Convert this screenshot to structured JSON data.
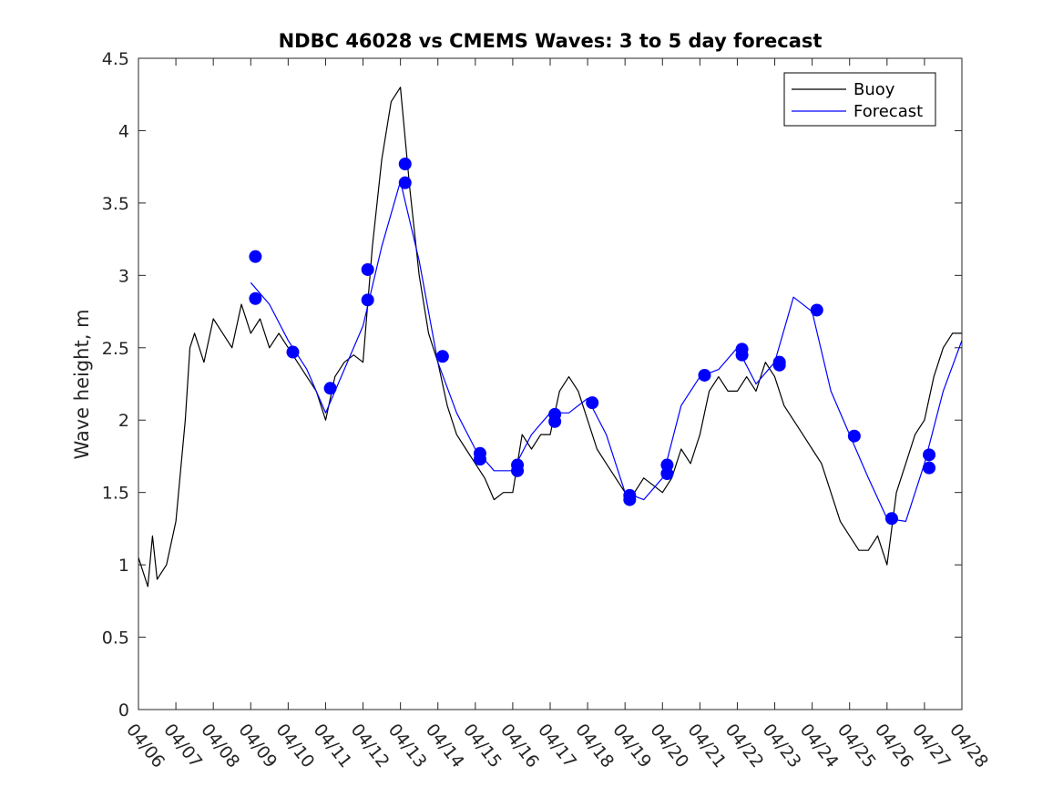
{
  "chart_data": {
    "type": "line",
    "title": "NDBC 46028 vs CMEMS Waves: 3 to 5 day forecast",
    "xlabel": "",
    "ylabel": "Wave height, m",
    "x_ticks": [
      "04/06",
      "04/07",
      "04/08",
      "04/09",
      "04/10",
      "04/11",
      "04/12",
      "04/13",
      "04/14",
      "04/15",
      "04/16",
      "04/17",
      "04/18",
      "04/19",
      "04/20",
      "04/21",
      "04/22",
      "04/23",
      "04/24",
      "04/25",
      "04/26",
      "04/27",
      "04/28"
    ],
    "xlim": [
      "04/06",
      "04/28"
    ],
    "y_ticks": [
      "0",
      "0.5",
      "1",
      "1.5",
      "2",
      "2.5",
      "3",
      "3.5",
      "4",
      "4.5"
    ],
    "ylim": [
      0,
      4.5
    ],
    "grid": false,
    "legend": {
      "position": "top-right",
      "entries": [
        {
          "name": "Buoy",
          "color": "#000000"
        },
        {
          "name": "Forecast",
          "color": "#0000ff"
        }
      ]
    },
    "series": [
      {
        "name": "Buoy",
        "color": "#000000",
        "x": [
          "04/06 00:00",
          "04/06 06:00",
          "04/06 09:00",
          "04/06 12:00",
          "04/06 18:00",
          "04/07 00:00",
          "04/07 06:00",
          "04/07 09:00",
          "04/07 12:00",
          "04/07 18:00",
          "04/08 00:00",
          "04/08 06:00",
          "04/08 12:00",
          "04/08 18:00",
          "04/09 00:00",
          "04/09 06:00",
          "04/09 12:00",
          "04/09 18:00",
          "04/10 00:00",
          "04/10 06:00",
          "04/10 12:00",
          "04/10 18:00",
          "04/11 00:00",
          "04/11 06:00",
          "04/11 12:00",
          "04/11 18:00",
          "04/12 00:00",
          "04/12 06:00",
          "04/12 12:00",
          "04/12 18:00",
          "04/13 00:00",
          "04/13 06:00",
          "04/13 12:00",
          "04/13 18:00",
          "04/14 00:00",
          "04/14 06:00",
          "04/14 12:00",
          "04/14 18:00",
          "04/15 00:00",
          "04/15 06:00",
          "04/15 12:00",
          "04/15 18:00",
          "04/16 00:00",
          "04/16 06:00",
          "04/16 12:00",
          "04/16 18:00",
          "04/17 00:00",
          "04/17 06:00",
          "04/17 12:00",
          "04/17 18:00",
          "04/18 00:00",
          "04/18 06:00",
          "04/18 12:00",
          "04/18 18:00",
          "04/19 00:00",
          "04/19 06:00",
          "04/19 12:00",
          "04/19 18:00",
          "04/20 00:00",
          "04/20 06:00",
          "04/20 12:00",
          "04/20 18:00",
          "04/21 00:00",
          "04/21 06:00",
          "04/21 12:00",
          "04/21 18:00",
          "04/22 00:00",
          "04/22 06:00",
          "04/22 12:00",
          "04/22 18:00",
          "04/23 00:00",
          "04/23 06:00",
          "04/23 12:00",
          "04/23 18:00",
          "04/24 00:00",
          "04/24 06:00",
          "04/24 12:00",
          "04/24 18:00",
          "04/25 00:00",
          "04/25 06:00",
          "04/25 12:00",
          "04/25 18:00",
          "04/26 00:00",
          "04/26 06:00",
          "04/26 12:00",
          "04/26 18:00",
          "04/27 00:00",
          "04/27 06:00",
          "04/27 12:00",
          "04/27 18:00",
          "04/28 00:00"
        ],
        "values": [
          1.05,
          0.85,
          1.2,
          0.9,
          1.0,
          1.3,
          2.0,
          2.5,
          2.6,
          2.4,
          2.7,
          2.6,
          2.5,
          2.8,
          2.6,
          2.7,
          2.5,
          2.6,
          2.5,
          2.4,
          2.3,
          2.2,
          2.0,
          2.3,
          2.4,
          2.45,
          2.4,
          3.2,
          3.8,
          4.2,
          4.3,
          3.6,
          3.0,
          2.6,
          2.4,
          2.1,
          1.9,
          1.8,
          1.7,
          1.6,
          1.45,
          1.5,
          1.5,
          1.9,
          1.8,
          1.9,
          1.9,
          2.2,
          2.3,
          2.2,
          2.0,
          1.8,
          1.7,
          1.6,
          1.5,
          1.5,
          1.6,
          1.55,
          1.5,
          1.6,
          1.8,
          1.7,
          1.9,
          2.2,
          2.3,
          2.2,
          2.2,
          2.3,
          2.2,
          2.4,
          2.3,
          2.1,
          2.0,
          1.9,
          1.8,
          1.7,
          1.5,
          1.3,
          1.2,
          1.1,
          1.1,
          1.2,
          1.0,
          1.5,
          1.7,
          1.9,
          2.0,
          2.3,
          2.5,
          2.6,
          2.6
        ]
      },
      {
        "name": "Forecast",
        "color": "#0000ff",
        "x": [
          "04/09 00:00",
          "04/09 12:00",
          "04/10 00:00",
          "04/10 12:00",
          "04/11 00:00",
          "04/11 12:00",
          "04/12 00:00",
          "04/12 12:00",
          "04/13 00:00",
          "04/13 12:00",
          "04/14 00:00",
          "04/14 12:00",
          "04/15 00:00",
          "04/15 12:00",
          "04/16 00:00",
          "04/16 12:00",
          "04/17 00:00",
          "04/17 12:00",
          "04/18 00:00",
          "04/18 12:00",
          "04/19 00:00",
          "04/19 12:00",
          "04/20 00:00",
          "04/20 12:00",
          "04/21 00:00",
          "04/21 12:00",
          "04/22 00:00",
          "04/22 12:00",
          "04/23 00:00",
          "04/23 12:00",
          "04/24 00:00",
          "04/24 12:00",
          "04/25 00:00",
          "04/25 12:00",
          "04/26 00:00",
          "04/26 12:00",
          "04/27 00:00",
          "04/27 12:00",
          "04/28 00:00"
        ],
        "values": [
          2.95,
          2.8,
          2.55,
          2.35,
          2.05,
          2.35,
          2.65,
          3.2,
          3.65,
          3.1,
          2.4,
          2.05,
          1.8,
          1.65,
          1.65,
          1.9,
          2.05,
          2.05,
          2.15,
          1.9,
          1.5,
          1.45,
          1.6,
          2.1,
          2.3,
          2.35,
          2.5,
          2.25,
          2.4,
          2.85,
          2.75,
          2.2,
          1.9,
          1.6,
          1.32,
          1.3,
          1.7,
          2.2,
          2.55
        ]
      },
      {
        "name": "",
        "color": "#0000ff",
        "markers": true,
        "x": [
          "04/09 03:00",
          "04/09 03:00",
          "04/10 03:00",
          "04/11 03:00",
          "04/12 03:00",
          "04/12 03:00",
          "04/13 03:00",
          "04/13 03:00",
          "04/14 03:00",
          "04/15 03:00",
          "04/15 03:00",
          "04/16 03:00",
          "04/16 03:00",
          "04/17 03:00",
          "04/17 03:00",
          "04/18 03:00",
          "04/19 03:00",
          "04/19 03:00",
          "04/20 03:00",
          "04/20 03:00",
          "04/21 03:00",
          "04/22 03:00",
          "04/22 03:00",
          "04/23 03:00",
          "04/23 03:00",
          "04/24 03:00",
          "04/25 03:00",
          "04/26 03:00",
          "04/27 03:00",
          "04/27 03:00"
        ],
        "values": [
          3.13,
          2.84,
          2.47,
          2.22,
          3.04,
          2.83,
          3.77,
          3.64,
          2.44,
          1.77,
          1.73,
          1.69,
          1.65,
          2.04,
          1.99,
          2.12,
          1.48,
          1.45,
          1.69,
          1.63,
          2.31,
          2.49,
          2.45,
          2.4,
          2.38,
          2.76,
          1.89,
          1.32,
          1.76,
          1.67
        ]
      }
    ]
  }
}
